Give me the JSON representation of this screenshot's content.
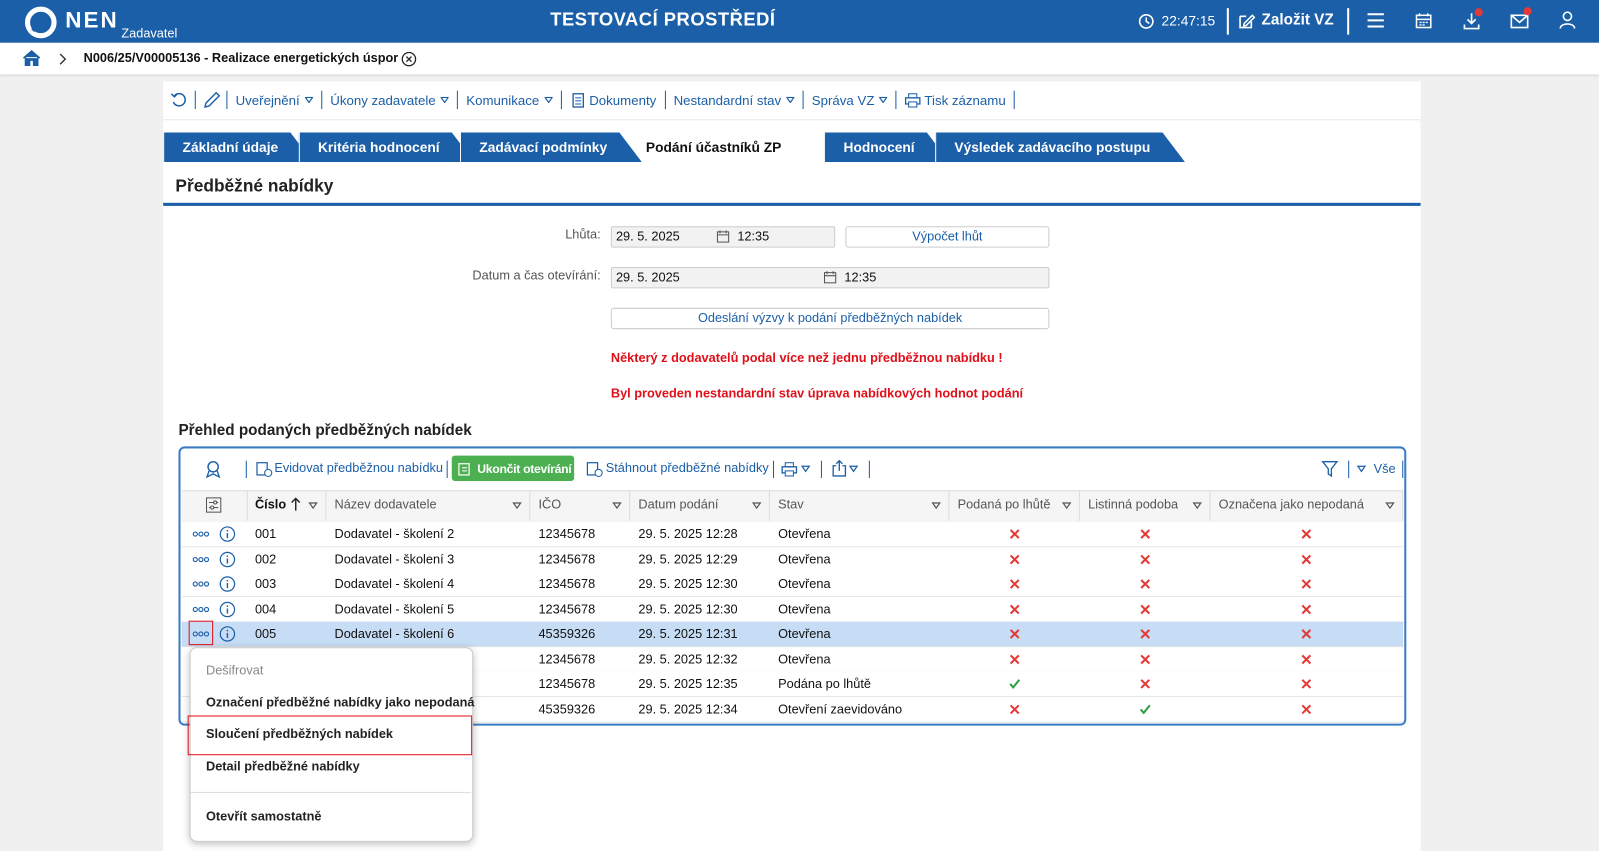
{
  "header": {
    "logo": "NEN",
    "role": "Zadavatel",
    "environment": "TESTOVACÍ PROSTŘEDÍ",
    "time": "22:47:15",
    "create": "Založit VZ"
  },
  "breadcrumb": {
    "title": "N006/25/V00005136 - Realizace energetických úspor"
  },
  "toolbar": [
    {
      "label": "Uveřejnění",
      "dropdown": true
    },
    {
      "label": "Úkony zadavatele",
      "dropdown": true
    },
    {
      "label": "Komunikace",
      "dropdown": true
    },
    {
      "label": "Dokumenty",
      "dropdown": false
    },
    {
      "label": "Nestandardní stav",
      "dropdown": true
    },
    {
      "label": "Správa VZ",
      "dropdown": true
    },
    {
      "label": "Tisk záznamu",
      "dropdown": false
    }
  ],
  "tabs": {
    "items": [
      "Základní údaje",
      "Kritéria hodnocení",
      "Zadávací podmínky",
      "Podání účastníků ZP",
      "Hodnocení",
      "Výsledek zadávacího postupu"
    ],
    "active": 3
  },
  "section": {
    "title": "Předběžné nabídky"
  },
  "form": {
    "deadline": {
      "label": "Lhůta:",
      "date": "29. 5. 2025",
      "time": "12:35",
      "button": "Výpočet lhůt"
    },
    "opening": {
      "label": "Datum a čas otevírání:",
      "date": "29. 5. 2025",
      "time": "12:35"
    },
    "send_button": "Odeslání výzvy k podání předběžných nabídek",
    "warnings": [
      "Některý z dodavatelů podal více než jednu předběžnou nabídku !",
      "Byl proveden nestandardní stav úprava nabídkových hodnot podání"
    ]
  },
  "grid": {
    "title": "Přehled podaných předběžných nabídek",
    "actions": {
      "register": "Evidovat předběžnou nabídku",
      "finish": "Ukončit otevírání",
      "download": "Stáhnout předběžné nabídky",
      "filter": "Vše"
    },
    "columns": [
      "Číslo",
      "Název dodavatele",
      "IČO",
      "Datum podání",
      "Stav",
      "Podaná po lhůtě",
      "Listinná podoba",
      "Označena jako nepodaná"
    ],
    "selected_row": 4,
    "rows": [
      [
        "001",
        "Dodavatel - školení 2",
        "12345678",
        "29. 5. 2025 12:28",
        "Otevřena",
        false,
        false,
        false
      ],
      [
        "002",
        "Dodavatel - školení 3",
        "12345678",
        "29. 5. 2025 12:29",
        "Otevřena",
        false,
        false,
        false
      ],
      [
        "003",
        "Dodavatel - školení 4",
        "12345678",
        "29. 5. 2025 12:30",
        "Otevřena",
        false,
        false,
        false
      ],
      [
        "004",
        "Dodavatel - školení 5",
        "12345678",
        "29. 5. 2025 12:30",
        "Otevřena",
        false,
        false,
        false
      ],
      [
        "005",
        "Dodavatel - školení 6",
        "45359326",
        "29. 5. 2025 12:31",
        "Otevřena",
        false,
        false,
        false
      ],
      [
        null,
        null,
        "12345678",
        "29. 5. 2025 12:32",
        "Otevřena",
        false,
        false,
        false
      ],
      [
        null,
        null,
        "12345678",
        "29. 5. 2025 12:35",
        "Podána po lhůtě",
        true,
        false,
        false
      ],
      [
        null,
        null,
        "45359326",
        "29. 5. 2025 12:34",
        "Otevření zaevidováno",
        false,
        true,
        false
      ]
    ]
  },
  "context_menu": {
    "items": [
      "Dešifrovat",
      "Označení předběžné nabídky jako nepodaná",
      "Sloučení předběžných nabídek",
      "Detail předběžné nabídky",
      "Otevřít samostatně"
    ],
    "disabled": 0,
    "highlighted": 2
  }
}
